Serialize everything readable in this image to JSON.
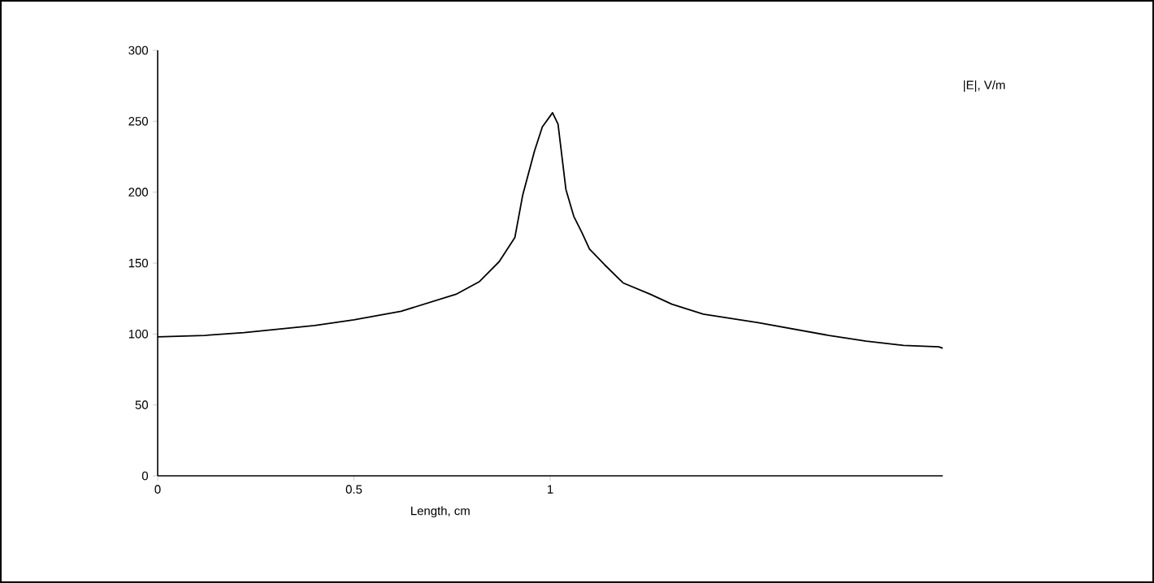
{
  "chart_data": {
    "type": "line",
    "xlabel": "Length, cm",
    "ylabel": "|E|, V/m",
    "x": [
      0,
      0.12,
      0.22,
      0.4,
      0.5,
      0.62,
      0.76,
      0.82,
      0.87,
      0.91,
      0.93,
      0.96,
      0.98,
      1.006,
      1.02,
      1.04,
      1.06,
      1.08,
      1.1,
      1.138,
      1.186,
      1.255,
      1.31,
      1.39,
      1.53,
      1.71,
      1.805,
      1.9,
      1.99,
      2.0
    ],
    "values": [
      98,
      99,
      101,
      106,
      110,
      116,
      128,
      137,
      151,
      168,
      198,
      229,
      246,
      256,
      248,
      202,
      183,
      172,
      160,
      149,
      136,
      128,
      121,
      114,
      108,
      99,
      95,
      92,
      91,
      90
    ],
    "color": "#000000",
    "xlim": [
      0,
      2
    ],
    "ylim": [
      0,
      300
    ],
    "xticks": [
      0,
      0.5,
      1
    ],
    "yticks": [
      0,
      50,
      100,
      150,
      200,
      250,
      300
    ]
  }
}
